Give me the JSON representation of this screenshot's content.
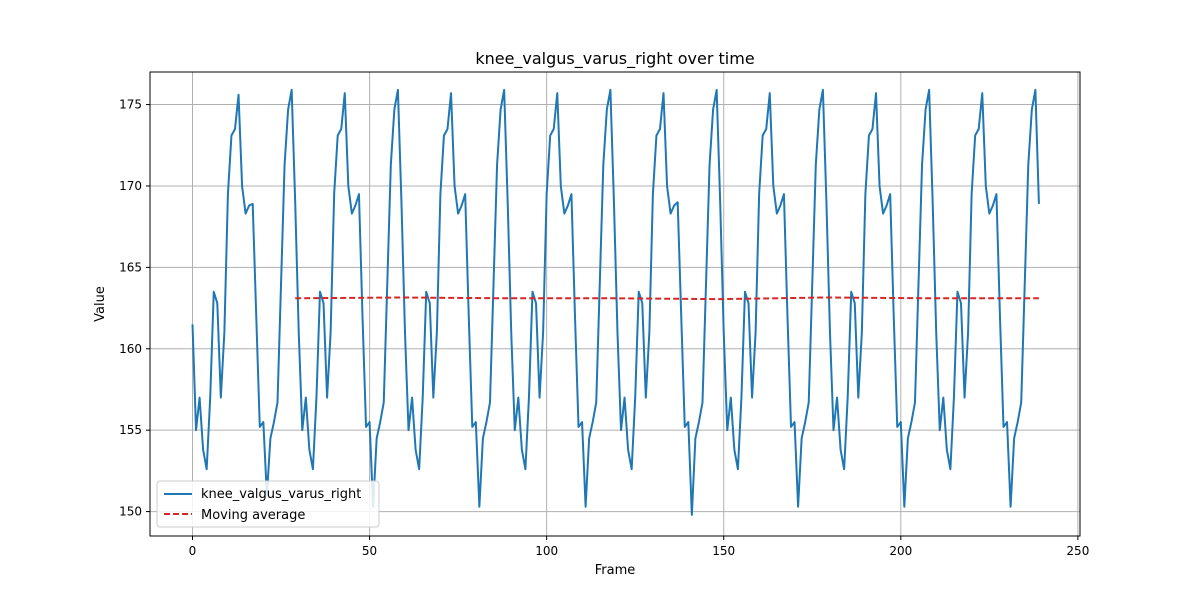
{
  "chart_data": {
    "type": "line",
    "title": "knee_valgus_varus_right over time",
    "xlabel": "Frame",
    "ylabel": "Value",
    "xlim": [
      -12,
      250.6
    ],
    "ylim": [
      148.5,
      177.0
    ],
    "xticks": [
      0,
      50,
      100,
      150,
      200,
      250
    ],
    "yticks": [
      150,
      155,
      160,
      165,
      170,
      175
    ],
    "grid": true,
    "legend_position": "lower-left",
    "series": [
      {
        "name": "knee_valgus_varus_right",
        "color": "#1f77b4",
        "style": "solid",
        "x": [
          0,
          1,
          2,
          3,
          4,
          5,
          6,
          7,
          8,
          9,
          10,
          11,
          12,
          13,
          14,
          15,
          16,
          17,
          18,
          19,
          20,
          21,
          22,
          23,
          24,
          25,
          26,
          27,
          28,
          29,
          30,
          31,
          32,
          33,
          34,
          35,
          36,
          37,
          38,
          39,
          40,
          41,
          42,
          43,
          44,
          45,
          46,
          47,
          48,
          49,
          50,
          51,
          52,
          53,
          54,
          55,
          56,
          57,
          58,
          59,
          60,
          61,
          62,
          63,
          64,
          65,
          66,
          67,
          68,
          69,
          70,
          71,
          72,
          73,
          74,
          75,
          76,
          77,
          78,
          79,
          80,
          81,
          82,
          83,
          84,
          85,
          86,
          87,
          88,
          89,
          90,
          91,
          92,
          93,
          94,
          95,
          96,
          97,
          98,
          99,
          100,
          101,
          102,
          103,
          104,
          105,
          106,
          107,
          108,
          109,
          110,
          111,
          112,
          113,
          114,
          115,
          116,
          117,
          118,
          119,
          120,
          121,
          122,
          123,
          124,
          125,
          126,
          127,
          128,
          129,
          130,
          131,
          132,
          133,
          134,
          135,
          136,
          137,
          138,
          139,
          140,
          141,
          142,
          143,
          144,
          145,
          146,
          147,
          148,
          149,
          150,
          151,
          152,
          153,
          154,
          155,
          156,
          157,
          158,
          159,
          160,
          161,
          162,
          163,
          164,
          165,
          166,
          167,
          168,
          169,
          170,
          171,
          172,
          173,
          174,
          175,
          176,
          177,
          178,
          179,
          180,
          181,
          182,
          183,
          184,
          185,
          186,
          187,
          188,
          189,
          190,
          191,
          192,
          193,
          194,
          195,
          196,
          197,
          198,
          199,
          200,
          201,
          202,
          203,
          204,
          205,
          206,
          207,
          208,
          209,
          210,
          211,
          212,
          213,
          214,
          215,
          216,
          217,
          218,
          219,
          220,
          221,
          222,
          223,
          224,
          225,
          226,
          227,
          228,
          229,
          230,
          231,
          232,
          233,
          234,
          235,
          236,
          237,
          238,
          239
        ],
        "values": [
          161.5,
          155.0,
          157.0,
          153.8,
          152.6,
          157.0,
          163.5,
          162.8,
          157.0,
          161.0,
          169.5,
          173.1,
          173.5,
          175.6,
          170.0,
          168.3,
          168.8,
          168.9,
          162.0,
          155.2,
          155.5,
          151.0,
          154.5,
          155.5,
          156.7,
          164.0,
          171.3,
          174.7,
          175.9,
          169.0,
          161.0,
          155.0,
          157.0,
          153.8,
          152.6,
          157.0,
          163.5,
          162.8,
          157.0,
          161.0,
          169.5,
          173.1,
          173.5,
          175.7,
          170.0,
          168.3,
          168.8,
          169.5,
          162.0,
          155.2,
          155.5,
          150.3,
          154.5,
          155.5,
          156.7,
          164.0,
          171.3,
          174.7,
          175.9,
          169.0,
          161.0,
          155.0,
          157.0,
          153.8,
          152.6,
          157.0,
          163.5,
          162.8,
          157.0,
          161.0,
          169.5,
          173.1,
          173.5,
          175.7,
          170.0,
          168.3,
          168.8,
          169.5,
          162.0,
          155.2,
          155.5,
          150.3,
          154.5,
          155.5,
          156.7,
          164.0,
          171.3,
          174.7,
          175.9,
          169.0,
          161.0,
          155.0,
          157.0,
          153.8,
          152.6,
          157.0,
          163.5,
          162.8,
          157.0,
          161.0,
          169.5,
          173.1,
          173.5,
          175.7,
          170.0,
          168.3,
          168.8,
          169.5,
          162.0,
          155.2,
          155.5,
          150.3,
          154.5,
          155.5,
          156.7,
          164.0,
          171.3,
          174.7,
          175.9,
          169.0,
          161.0,
          155.0,
          157.0,
          153.8,
          152.6,
          157.0,
          163.5,
          162.8,
          157.0,
          161.0,
          169.5,
          173.1,
          173.5,
          175.7,
          170.0,
          168.3,
          168.8,
          169.0,
          162.0,
          155.2,
          155.5,
          149.8,
          154.5,
          155.5,
          156.7,
          164.0,
          171.3,
          174.7,
          175.9,
          169.0,
          161.0,
          155.0,
          157.0,
          153.8,
          152.6,
          157.0,
          163.5,
          162.8,
          157.0,
          161.0,
          169.5,
          173.1,
          173.5,
          175.7,
          170.0,
          168.3,
          168.8,
          169.5,
          162.0,
          155.2,
          155.5,
          150.3,
          154.5,
          155.5,
          156.7,
          164.0,
          171.3,
          174.7,
          175.9,
          169.0,
          161.0,
          155.0,
          157.0,
          153.8,
          152.6,
          157.0,
          163.5,
          162.8,
          157.0,
          161.0,
          169.5,
          173.1,
          173.5,
          175.7,
          170.0,
          168.3,
          168.8,
          169.5,
          162.0,
          155.2,
          155.5,
          150.3,
          154.5,
          155.5,
          156.7,
          164.0,
          171.3,
          174.7,
          175.9,
          169.0,
          161.0,
          155.0,
          157.0,
          153.8,
          152.6,
          157.0,
          163.5,
          162.8,
          157.0,
          161.0,
          169.5,
          173.1,
          173.5,
          175.7,
          170.0,
          168.3,
          168.8,
          169.5,
          162.0,
          155.2,
          155.5,
          150.3,
          154.5,
          155.5,
          156.7,
          164.0,
          171.3,
          174.7,
          175.9,
          168.9
        ]
      },
      {
        "name": "Moving average",
        "color": "#d62728",
        "style": "dashed",
        "x": [
          29,
          59,
          89,
          119,
          149,
          179,
          209,
          239
        ],
        "values": [
          163.1,
          163.15,
          163.1,
          163.1,
          163.05,
          163.15,
          163.1,
          163.1
        ]
      }
    ]
  }
}
